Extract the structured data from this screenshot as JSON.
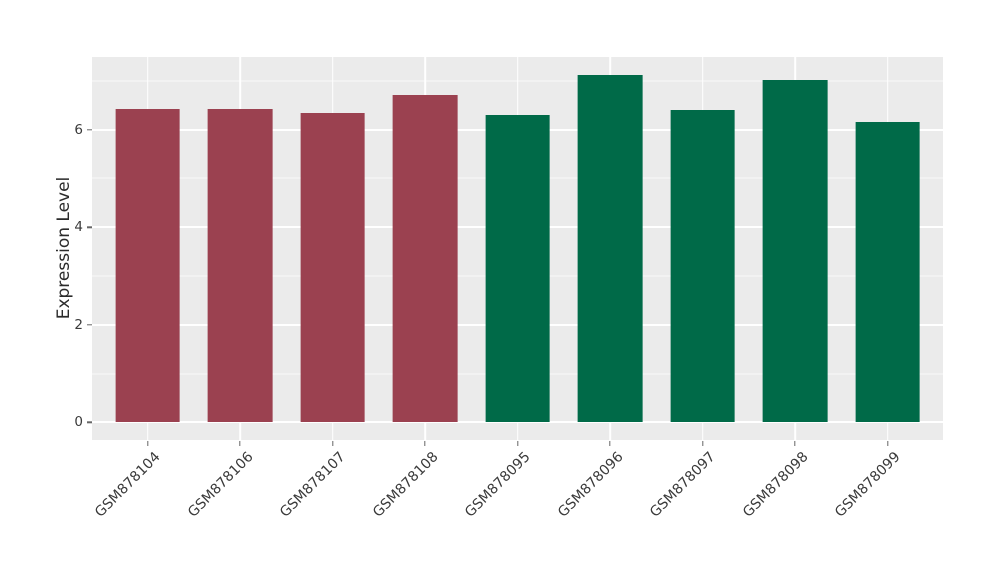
{
  "figure": {
    "background": "#FFFFFF"
  },
  "chart_data": {
    "type": "bar",
    "title": "",
    "xlabel": "",
    "ylabel": "Expression Level",
    "categories": [
      "GSM878104",
      "GSM878106",
      "GSM878107",
      "GSM878108",
      "GSM878095",
      "GSM878096",
      "GSM878097",
      "GSM878098",
      "GSM878099"
    ],
    "values": [
      6.42,
      6.42,
      6.35,
      6.72,
      6.3,
      7.13,
      6.41,
      7.02,
      6.16
    ],
    "groups": [
      "group1",
      "group1",
      "group1",
      "group1",
      "group2",
      "group2",
      "group2",
      "group2",
      "group2"
    ],
    "group_colors": {
      "group1": "#9B4150",
      "group2": "#006A48"
    },
    "bar_width_fraction": 0.7,
    "ylim": [
      -0.36,
      7.49
    ],
    "yticks": [
      0,
      2,
      4,
      6
    ],
    "minor_yticks": [
      1,
      3,
      5,
      7
    ],
    "x_tick_rotation_deg": 45,
    "grid": true,
    "legend": "none",
    "plot_background": "#EBEBEB",
    "grid_color": "#FFFFFF",
    "tick_color": "#666666",
    "text_color": "#3a3a3a"
  }
}
